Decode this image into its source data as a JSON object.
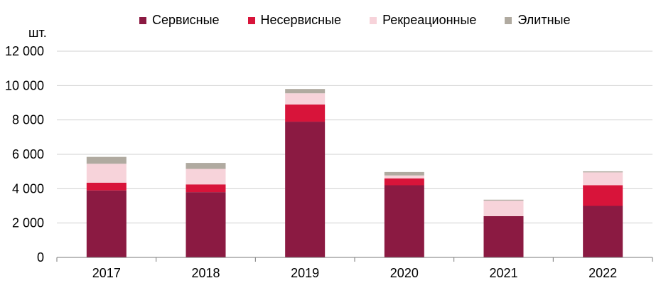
{
  "chart_data": {
    "type": "bar",
    "stacked": true,
    "title": "",
    "xlabel": "",
    "ylabel": "шт.",
    "categories": [
      "2017",
      "2018",
      "2019",
      "2020",
      "2021",
      "2022"
    ],
    "series": [
      {
        "name": "Сервисные",
        "color": "#8b1a42",
        "values": [
          3900,
          3800,
          7900,
          4200,
          2400,
          3000
        ]
      },
      {
        "name": "Несервисные",
        "color": "#d8143a",
        "values": [
          450,
          450,
          1000,
          400,
          0,
          1200
        ]
      },
      {
        "name": "Рекреационные",
        "color": "#f7d3da",
        "values": [
          1100,
          900,
          650,
          170,
          900,
          750
        ]
      },
      {
        "name": "Элитные",
        "color": "#b0aaa0",
        "values": [
          400,
          350,
          250,
          200,
          60,
          60
        ]
      }
    ],
    "ylim": [
      0,
      12000
    ],
    "yticks": [
      0,
      2000,
      4000,
      6000,
      8000,
      10000,
      12000
    ],
    "ytick_labels": [
      "0",
      "2 000",
      "4 000",
      "6 000",
      "8 000",
      "10 000",
      "12 000"
    ],
    "grid": true,
    "legend_position": "top"
  }
}
